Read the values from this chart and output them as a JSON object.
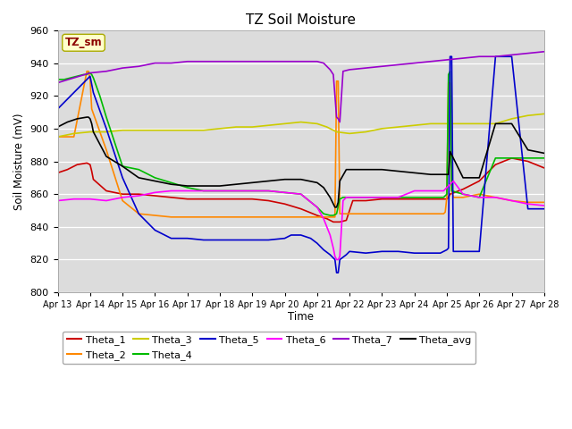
{
  "title": "TZ Soil Moisture",
  "ylabel": "Soil Moisture (mV)",
  "xlabel": "Time",
  "ylim": [
    800,
    960
  ],
  "xlim": [
    0,
    15
  ],
  "xtick_labels": [
    "Apr 13",
    "Apr 14",
    "Apr 15",
    "Apr 16",
    "Apr 17",
    "Apr 18",
    "Apr 19",
    "Apr 20",
    "Apr 21",
    "Apr 22",
    "Apr 23",
    "Apr 24",
    "Apr 25",
    "Apr 26",
    "Apr 27",
    "Apr 28"
  ],
  "xtick_positions": [
    0,
    1,
    2,
    3,
    4,
    5,
    6,
    7,
    8,
    9,
    10,
    11,
    12,
    13,
    14,
    15
  ],
  "bg_color": "#dcdcdc",
  "fig_color": "#ffffff",
  "box_label": "TZ_sm",
  "box_text_color": "#8b0000",
  "box_bg_color": "#ffffcc",
  "legend_entries": [
    "Theta_1",
    "Theta_2",
    "Theta_3",
    "Theta_4",
    "Theta_5",
    "Theta_6",
    "Theta_7",
    "Theta_avg"
  ],
  "line_colors": [
    "#cc0000",
    "#ff8800",
    "#cccc00",
    "#00bb00",
    "#0000cc",
    "#ff00ff",
    "#9900cc",
    "#000000"
  ],
  "series": {
    "Theta_1": {
      "x": [
        0,
        0.3,
        0.6,
        0.9,
        1.0,
        1.05,
        1.1,
        1.5,
        2.0,
        2.5,
        3.0,
        3.5,
        4.0,
        4.5,
        5.0,
        5.5,
        6.0,
        6.5,
        7.0,
        7.5,
        8.0,
        8.3,
        8.5,
        8.7,
        8.9,
        9.0,
        9.1,
        9.5,
        10.0,
        10.5,
        11.0,
        11.5,
        11.9,
        12.0,
        12.05,
        12.1,
        12.5,
        12.7,
        13.0,
        13.5,
        14.0,
        14.5,
        15.0
      ],
      "y": [
        873,
        875,
        878,
        879,
        878,
        874,
        869,
        862,
        860,
        860,
        859,
        858,
        857,
        857,
        857,
        857,
        857,
        856,
        854,
        851,
        847,
        845,
        843,
        843,
        844,
        850,
        856,
        856,
        857,
        857,
        857,
        857,
        857,
        857,
        858,
        860,
        863,
        865,
        868,
        878,
        882,
        880,
        876
      ]
    },
    "Theta_2": {
      "x": [
        0,
        0.5,
        0.9,
        0.95,
        1.0,
        1.05,
        1.5,
        2.0,
        2.5,
        3.0,
        3.5,
        4.0,
        4.5,
        5.0,
        5.5,
        6.0,
        6.5,
        7.0,
        7.5,
        8.0,
        8.3,
        8.5,
        8.55,
        8.6,
        8.65,
        8.7,
        8.75,
        9.0,
        9.5,
        10.0,
        10.5,
        11.0,
        11.5,
        11.9,
        11.95,
        12.0,
        12.05,
        12.1,
        12.15,
        12.2,
        12.5,
        13.0,
        13.5,
        14.0,
        14.5,
        15.0
      ],
      "y": [
        895,
        895,
        935,
        935,
        930,
        912,
        887,
        856,
        848,
        847,
        846,
        846,
        846,
        846,
        846,
        846,
        846,
        846,
        846,
        846,
        846,
        846,
        846,
        929,
        929,
        848,
        848,
        848,
        848,
        848,
        848,
        848,
        848,
        848,
        849,
        858,
        928,
        928,
        862,
        858,
        858,
        860,
        858,
        856,
        855,
        855
      ]
    },
    "Theta_3": {
      "x": [
        0,
        0.5,
        1.0,
        1.5,
        2.0,
        2.5,
        3.0,
        3.5,
        4.0,
        4.5,
        5.0,
        5.5,
        6.0,
        6.5,
        7.0,
        7.5,
        8.0,
        8.3,
        8.6,
        9.0,
        9.5,
        10.0,
        10.5,
        11.0,
        11.5,
        12.0,
        12.5,
        13.0,
        13.5,
        14.0,
        14.5,
        15.0
      ],
      "y": [
        895,
        897,
        898,
        898,
        899,
        899,
        899,
        899,
        899,
        899,
        900,
        901,
        901,
        902,
        903,
        904,
        903,
        901,
        898,
        897,
        898,
        900,
        901,
        902,
        903,
        903,
        903,
        903,
        903,
        906,
        908,
        909
      ]
    },
    "Theta_4": {
      "x": [
        0,
        0.2,
        0.4,
        0.6,
        0.8,
        0.9,
        0.95,
        1.0,
        1.05,
        1.1,
        1.3,
        1.5,
        2.0,
        2.5,
        3.0,
        3.5,
        4.0,
        4.5,
        5.0,
        5.5,
        6.0,
        6.5,
        7.0,
        7.5,
        8.0,
        8.2,
        8.4,
        8.5,
        8.6,
        8.7,
        8.8,
        8.9,
        9.0,
        9.5,
        10.0,
        10.5,
        11.0,
        11.5,
        11.9,
        12.0,
        12.05,
        12.1,
        12.15,
        12.5,
        13.0,
        13.5,
        14.0,
        14.5,
        15.0
      ],
      "y": [
        930,
        930,
        931,
        932,
        933,
        933,
        934,
        934,
        933,
        931,
        920,
        907,
        877,
        875,
        870,
        867,
        864,
        862,
        862,
        862,
        862,
        862,
        861,
        860,
        852,
        848,
        847,
        847,
        848,
        857,
        858,
        858,
        858,
        858,
        858,
        858,
        858,
        858,
        858,
        860,
        933,
        935,
        862,
        860,
        858,
        882,
        882,
        882,
        882
      ]
    },
    "Theta_5": {
      "x": [
        0,
        0.2,
        0.4,
        0.6,
        0.8,
        0.9,
        0.95,
        1.0,
        1.1,
        1.5,
        2.0,
        2.5,
        3.0,
        3.5,
        4.0,
        4.5,
        5.0,
        5.5,
        6.0,
        6.5,
        7.0,
        7.2,
        7.5,
        7.8,
        8.0,
        8.2,
        8.4,
        8.5,
        8.55,
        8.6,
        8.65,
        8.7,
        8.9,
        9.0,
        9.5,
        10.0,
        10.5,
        11.0,
        11.5,
        11.8,
        11.9,
        12.0,
        12.05,
        12.1,
        12.15,
        12.2,
        12.3,
        12.5,
        13.0,
        13.5,
        14.0,
        14.5,
        15.0
      ],
      "y": [
        912,
        916,
        920,
        924,
        928,
        930,
        931,
        932,
        922,
        900,
        870,
        848,
        838,
        833,
        833,
        832,
        832,
        832,
        832,
        832,
        833,
        835,
        835,
        833,
        830,
        826,
        823,
        821,
        820,
        812,
        812,
        820,
        823,
        825,
        824,
        825,
        825,
        824,
        824,
        824,
        825,
        826,
        827,
        944,
        944,
        825,
        825,
        825,
        825,
        944,
        944,
        851,
        851
      ]
    },
    "Theta_6": {
      "x": [
        0,
        0.5,
        1.0,
        1.5,
        2.0,
        2.5,
        3.0,
        3.5,
        4.0,
        4.5,
        5.0,
        5.5,
        6.0,
        6.5,
        7.0,
        7.5,
        8.0,
        8.2,
        8.4,
        8.5,
        8.55,
        8.6,
        8.65,
        8.7,
        8.8,
        8.9,
        9.0,
        9.5,
        10.0,
        10.5,
        11.0,
        11.5,
        11.9,
        12.0,
        12.1,
        12.2,
        12.5,
        13.0,
        13.5,
        14.0,
        14.5,
        15.0
      ],
      "y": [
        856,
        857,
        857,
        856,
        858,
        859,
        861,
        862,
        862,
        862,
        862,
        862,
        862,
        862,
        861,
        860,
        852,
        845,
        835,
        827,
        822,
        820,
        820,
        822,
        856,
        858,
        858,
        858,
        858,
        858,
        862,
        862,
        862,
        864,
        866,
        868,
        860,
        858,
        858,
        856,
        854,
        853
      ]
    },
    "Theta_7": {
      "x": [
        0,
        0.5,
        1.0,
        1.5,
        2.0,
        2.5,
        3.0,
        3.5,
        4.0,
        4.5,
        5.0,
        5.5,
        6.0,
        6.5,
        7.0,
        7.5,
        8.0,
        8.2,
        8.3,
        8.4,
        8.5,
        8.6,
        8.65,
        8.7,
        8.8,
        9.0,
        9.5,
        10.0,
        10.5,
        11.0,
        11.5,
        12.0,
        12.5,
        13.0,
        13.5,
        14.0,
        14.5,
        15.0
      ],
      "y": [
        928,
        931,
        934,
        935,
        937,
        938,
        940,
        940,
        941,
        941,
        941,
        941,
        941,
        941,
        941,
        941,
        941,
        940,
        938,
        936,
        933,
        907,
        906,
        904,
        935,
        936,
        937,
        938,
        939,
        940,
        941,
        942,
        943,
        944,
        944,
        945,
        946,
        947
      ]
    },
    "Theta_avg": {
      "x": [
        0,
        0.3,
        0.6,
        0.9,
        0.95,
        1.0,
        1.05,
        1.1,
        1.5,
        2.0,
        2.5,
        3.0,
        3.5,
        4.0,
        4.5,
        5.0,
        5.5,
        6.0,
        6.5,
        7.0,
        7.5,
        8.0,
        8.2,
        8.4,
        8.5,
        8.55,
        8.6,
        8.65,
        8.7,
        8.9,
        9.0,
        9.5,
        10.0,
        10.5,
        11.0,
        11.5,
        11.9,
        12.0,
        12.05,
        12.1,
        12.5,
        13.0,
        13.5,
        14.0,
        14.5,
        15.0
      ],
      "y": [
        901,
        904,
        906,
        907,
        907,
        906,
        903,
        898,
        883,
        877,
        870,
        868,
        866,
        865,
        865,
        865,
        866,
        867,
        868,
        869,
        869,
        867,
        864,
        858,
        854,
        852,
        852,
        855,
        868,
        875,
        875,
        875,
        875,
        874,
        873,
        872,
        872,
        872,
        872,
        886,
        870,
        870,
        903,
        903,
        887,
        885
      ]
    }
  }
}
